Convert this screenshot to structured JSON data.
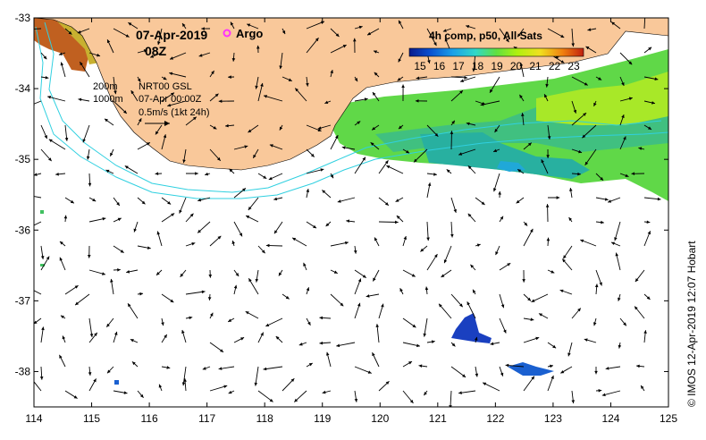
{
  "map": {
    "date_label": "07-Apr-2019",
    "time_label": "08Z",
    "legend_argo_label": "Argo",
    "colorbar_title": "4h comp, p50, All Sats",
    "colorbar_ticks": [
      "15",
      "16",
      "17",
      "18",
      "19",
      "20",
      "21",
      "22",
      "23"
    ],
    "isobath_labels": [
      "200m",
      "1000m"
    ],
    "nrt_label": "NRT00 GSL",
    "nrt_time": "07-Apr 00:00Z",
    "scale_label": "0.5m/s (1kt 24h)",
    "credit": "© IMOS 12-Apr-2019 12:07 Hobart",
    "x_ticks": [
      "114",
      "115",
      "116",
      "117",
      "118",
      "119",
      "120",
      "121",
      "122",
      "123",
      "124",
      "125"
    ],
    "y_ticks": [
      "-33",
      "-34",
      "-35",
      "-36",
      "-37",
      "-38"
    ],
    "lon_range": [
      114,
      125
    ],
    "lat_range": [
      -38.5,
      -33
    ],
    "colors": {
      "land": "#f9c89a",
      "ocean": "#ffffff",
      "isobath": "#30d0e0",
      "argo": "#ff33ff",
      "colormap": [
        "#0a1a8c",
        "#0a50d0",
        "#1aa0e8",
        "#30d8c8",
        "#60e040",
        "#b0f010",
        "#f0e020",
        "#f08010",
        "#c02010"
      ]
    }
  }
}
